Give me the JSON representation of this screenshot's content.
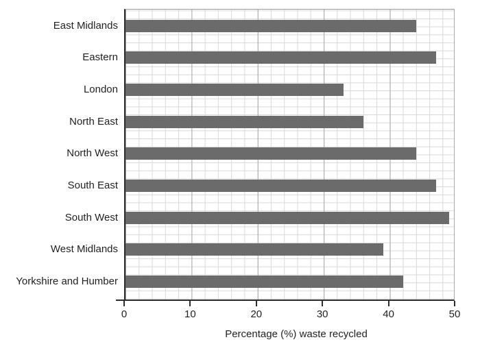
{
  "chart_data": {
    "type": "bar",
    "orientation": "horizontal",
    "title": "",
    "xlabel": "Percentage (%) waste recycled",
    "ylabel": "",
    "categories": [
      "East Midlands",
      "Eastern",
      "London",
      "North East",
      "North West",
      "South East",
      "South West",
      "West Midlands",
      "Yorkshire and Humber"
    ],
    "values": [
      44,
      47,
      33,
      36,
      44,
      47,
      49,
      39,
      42
    ],
    "xlim": [
      0,
      50
    ],
    "xticks": [
      0,
      10,
      20,
      30,
      40,
      50
    ],
    "grid": "on",
    "minor_grid_step_x": 2,
    "colors": {
      "bar": "#6b6b6b",
      "axis": "#2b2b2b",
      "grid_minor": "#d8d8d8",
      "grid_major": "#a8a8a8",
      "text": "#1f1f1f"
    }
  }
}
